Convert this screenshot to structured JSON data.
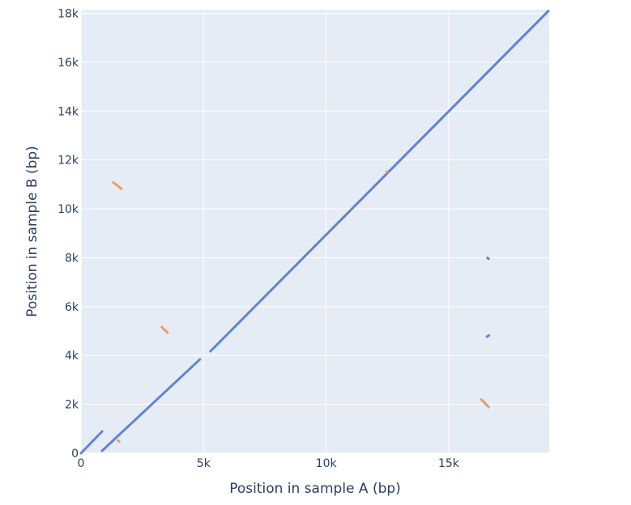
{
  "chart_data": {
    "type": "line",
    "title": "",
    "xlabel": "Position in sample A (bp)",
    "ylabel": "Position in sample B (bp)",
    "xlim": [
      0,
      19100
    ],
    "ylim": [
      0,
      18150
    ],
    "xticks": [
      {
        "v": 0,
        "label": "0"
      },
      {
        "v": 5000,
        "label": "5k"
      },
      {
        "v": 10000,
        "label": "10k"
      },
      {
        "v": 15000,
        "label": "15k"
      }
    ],
    "yticks": [
      {
        "v": 0,
        "label": "0"
      },
      {
        "v": 2000,
        "label": "2k"
      },
      {
        "v": 4000,
        "label": "4k"
      },
      {
        "v": 6000,
        "label": "6k"
      },
      {
        "v": 8000,
        "label": "8k"
      },
      {
        "v": 10000,
        "label": "10k"
      },
      {
        "v": 12000,
        "label": "12k"
      },
      {
        "v": 14000,
        "label": "14k"
      },
      {
        "v": 16000,
        "label": "16k"
      },
      {
        "v": 18000,
        "label": "18k"
      }
    ],
    "grid": true,
    "colors": {
      "forward": "#4a72c8",
      "reverse": "#ef8c4f",
      "background": "#e5ecf6"
    },
    "series": [
      {
        "strand": "forward",
        "segments": [
          [
            [
              0,
              0
            ],
            [
              860,
              890
            ]
          ],
          [
            [
              860,
              100
            ],
            [
              4850,
              3840
            ]
          ],
          [
            [
              5280,
              4170
            ],
            [
              19070,
              18100
            ]
          ],
          [
            [
              16580,
              7990
            ],
            [
              16630,
              7960
            ]
          ],
          [
            [
              16560,
              4770
            ],
            [
              16640,
              4820
            ]
          ]
        ]
      },
      {
        "strand": "reverse",
        "segments": [
          [
            [
              1320,
              11080
            ],
            [
              1650,
              10820
            ]
          ],
          [
            [
              1500,
              520
            ],
            [
              1560,
              480
            ]
          ],
          [
            [
              3300,
              5160
            ],
            [
              3530,
              4930
            ]
          ],
          [
            [
              16330,
              2200
            ],
            [
              16630,
              1890
            ]
          ],
          [
            [
              12480,
              11520
            ],
            [
              12520,
              11480
            ]
          ]
        ]
      }
    ]
  }
}
